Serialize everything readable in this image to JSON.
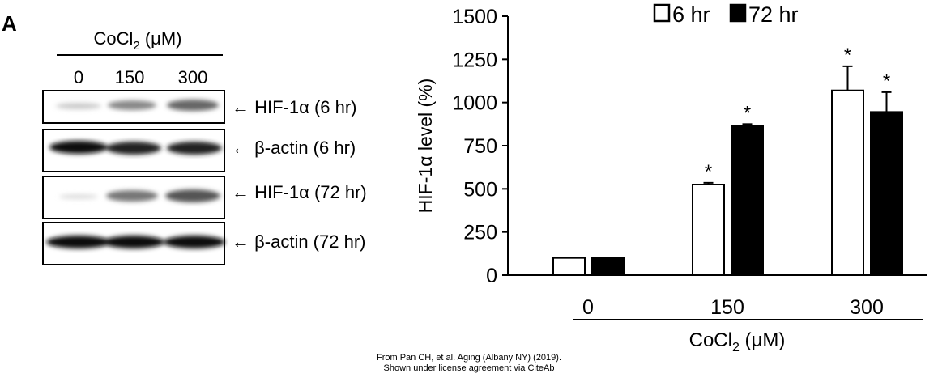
{
  "panel_label": "A",
  "blot": {
    "header": {
      "text": "CoCl",
      "sub": "2",
      "unit": " (μM)"
    },
    "lanes": [
      "0",
      "150",
      "300"
    ],
    "rows": [
      "← HIF-1α  (6 hr)",
      "← β-actin (6 hr)",
      "← HIF-1α (72 hr)",
      "← β-actin (72 hr)"
    ]
  },
  "credit": [
    "From Pan CH, et al. Aging (Albany NY) (2019).",
    "Shown under license agreement via CiteAb"
  ],
  "chart_data": {
    "type": "bar",
    "y_label": "HIF-1α level (%)",
    "x_label": {
      "text": "CoCl",
      "sub": "2",
      "unit": " (μM)"
    },
    "categories": [
      "0",
      "150",
      "300"
    ],
    "series": [
      {
        "name": "6 hr",
        "color": "#ffffff",
        "values": [
          100,
          525,
          1070
        ],
        "errors": [
          0,
          10,
          140
        ],
        "marks": [
          null,
          "*",
          "*"
        ]
      },
      {
        "name": "72 hr",
        "color": "#000000",
        "values": [
          100,
          865,
          945
        ],
        "errors": [
          0,
          10,
          115
        ],
        "marks": [
          null,
          "*",
          "*"
        ]
      }
    ],
    "ylim": [
      0,
      1500
    ],
    "yticks": [
      0,
      250,
      500,
      750,
      1000,
      1250,
      1500
    ],
    "grid": false,
    "legend": "top"
  }
}
